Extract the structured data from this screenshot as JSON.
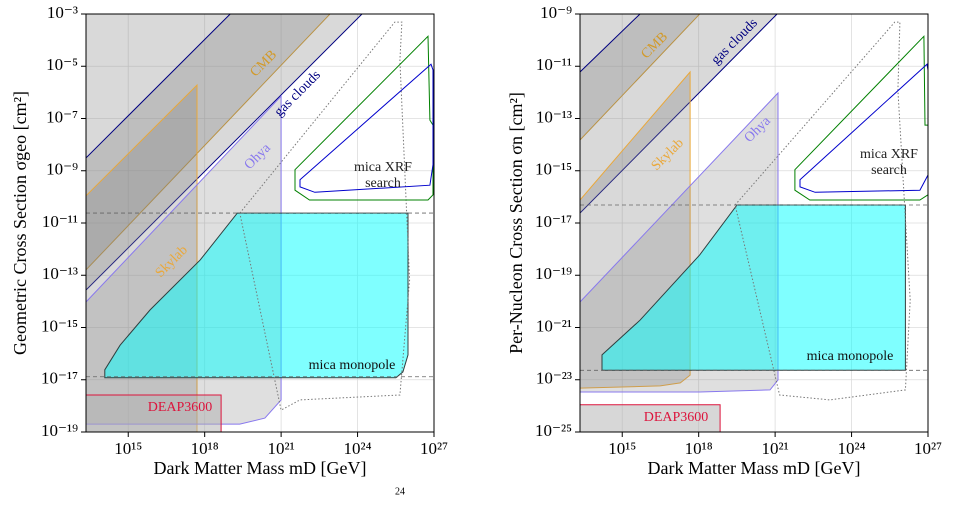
{
  "page_fragment": "24",
  "chart_data": [
    {
      "type": "area",
      "xlabel": "Dark Matter Mass mD [GeV]",
      "ylabel": "Geometric Cross Section σgeo [cm²]",
      "xscale": "log",
      "yscale": "log",
      "grid": true,
      "xlim": [
        22000000000000.0,
        1e+27
      ],
      "ylim": [
        1e-19,
        0.001
      ],
      "xticks": [
        {
          "value": 1000000000000000.0,
          "label": "10¹⁵"
        },
        {
          "value": 1e+18,
          "label": "10¹⁸"
        },
        {
          "value": 1e+21,
          "label": "10²¹"
        },
        {
          "value": 1e+24,
          "label": "10²⁴"
        },
        {
          "value": 1e+27,
          "label": "10²⁷"
        }
      ],
      "yticks": [
        {
          "value": 1e-19,
          "label": "10⁻¹⁹"
        },
        {
          "value": 1e-17,
          "label": "10⁻¹⁷"
        },
        {
          "value": 1e-15,
          "label": "10⁻¹⁵"
        },
        {
          "value": 1e-13,
          "label": "10⁻¹³"
        },
        {
          "value": 1e-11,
          "label": "10⁻¹¹"
        },
        {
          "value": 1e-09,
          "label": "10⁻⁹"
        },
        {
          "value": 1e-07,
          "label": "10⁻⁷"
        },
        {
          "value": 1e-05,
          "label": "10⁻⁵"
        },
        {
          "value": 0.001,
          "label": "10⁻³"
        }
      ],
      "hlines": [
        2.4e-11,
        1.3e-17
      ],
      "series": [
        {
          "name": "CMB",
          "color": "#d29a2a",
          "fill": "#808080",
          "alpha": 0.3,
          "x": [
            22000000000000.0,
            8.3e+22,
            22000000000000.0
          ],
          "y": [
            0.001,
            0.001,
            1.6e-13
          ]
        },
        {
          "name": "gas clouds",
          "color": "#000080",
          "fill": "#808080",
          "alpha": 0.3,
          "x": [
            22000000000000.0,
            1e+19,
            1.5e+24,
            22000000000000.0
          ],
          "y": [
            3.1e-09,
            0.001,
            0.001,
            2.7e-14
          ]
        },
        {
          "name": "Skylab",
          "color": "#eaa83a",
          "fill": "#808080",
          "alpha": 0.3,
          "x": [
            22000000000000.0,
            5e+17,
            5e+17,
            22000000000000.0
          ],
          "y": [
            1.1e-10,
            1.9e-06,
            1e-19,
            1e-19
          ]
        },
        {
          "name": "Ohya",
          "color": "#8878ee",
          "fill": "#808080",
          "alpha": 0.25,
          "x": [
            22000000000000.0,
            1e+21,
            1e+21,
            2.3e+20,
            2.4e+19,
            22000000000000.0
          ],
          "y": [
            9.5e-15,
            7.2e-07,
            1.7e-18,
            3.4e-19,
            2e-19,
            2e-19
          ]
        },
        {
          "name": "DEAP3600",
          "color": "#dc143c",
          "fill": "#b0b0b0",
          "alpha": 0.5,
          "x": [
            22000000000000.0,
            4.4e+18,
            4.4e+18,
            22000000000000.0
          ],
          "y": [
            2.6e-18,
            2.6e-18,
            1e-19,
            1e-19
          ]
        },
        {
          "name": "mica monopole",
          "color": "#2f3f3f",
          "fill": "#00ffff",
          "alpha": 0.5,
          "x": [
            120000000000000.0,
            480000000000000.0,
            7200000000000000.0,
            6.6e+17,
            1.9e+19,
            9.5e+25,
            9.5e+25,
            6e+25,
            3.2e+25,
            120000000000000.0
          ],
          "y": [
            2.4e-17,
            2.1e-16,
            4.7e-15,
            3.8e-13,
            2.4e-11,
            2.4e-11,
            8.9e-17,
            2e-17,
            1.2e-17,
            1.2e-17
          ]
        },
        {
          "color": "#777777",
          "dash": "dotted",
          "x": [
            2.4e+19,
            2.9e+25,
            5.5e+25,
            4.6e+25,
            1.1e+26,
            4.6e+25,
            5.5e+21,
            1e+21
          ],
          "y": [
            2.4e-11,
            0.00049,
            0.00049,
            1.7e-05,
            6.6e-14,
            2.6e-18,
            1.7e-18,
            6.9e-19
          ]
        },
        {
          "name": "mica XRF search",
          "color": "#008000",
          "x": [
            3.5e+21,
            5.8e+26,
            6.9e+26,
            9.1e+26,
            9.1e+26,
            5.8e+26,
            1.3e+22,
            3.5e+21
          ],
          "y": [
            1.1e-09,
            0.00014,
            8.7e-08,
            5.6e-08,
            1.2e-10,
            7.6e-11,
            7.6e-11,
            1.8e-10
          ]
        },
        {
          "color": "#0000cc",
          "x": [
            5.5e+21,
            7.6e+26,
            9.1e+26,
            9.1e+26,
            6.9e+26,
            2.1e+22,
            5.5e+21
          ],
          "y": [
            4.5e-10,
            1.2e-05,
            7.2e-06,
            1.7e-09,
            2.8e-10,
            1.5e-10,
            2.4e-10
          ]
        }
      ]
    },
    {
      "type": "area",
      "xlabel": "Dark Matter Mass mD [GeV]",
      "ylabel": "Per-Nucleon Cross Section σn [cm²]",
      "xscale": "log",
      "yscale": "log",
      "grid": true,
      "xlim": [
        22000000000000.0,
        1e+27
      ],
      "ylim": [
        1e-25,
        1e-09
      ],
      "xticks": [
        {
          "value": 1000000000000000.0,
          "label": "10¹⁵"
        },
        {
          "value": 1e+18,
          "label": "10¹⁸"
        },
        {
          "value": 1e+21,
          "label": "10²¹"
        },
        {
          "value": 1e+24,
          "label": "10²⁴"
        },
        {
          "value": 1e+27,
          "label": "10²⁷"
        }
      ],
      "yticks": [
        {
          "value": 1e-25,
          "label": "10⁻²⁵"
        },
        {
          "value": 1e-23,
          "label": "10⁻²³"
        },
        {
          "value": 1e-21,
          "label": "10⁻²¹"
        },
        {
          "value": 1e-19,
          "label": "10⁻¹⁹"
        },
        {
          "value": 1e-17,
          "label": "10⁻¹⁷"
        },
        {
          "value": 1e-15,
          "label": "10⁻¹⁵"
        },
        {
          "value": 1e-13,
          "label": "10⁻¹³"
        },
        {
          "value": 1e-11,
          "label": "10⁻¹¹"
        },
        {
          "value": 1e-09,
          "label": "10⁻⁹"
        }
      ],
      "hlines": [
        4.9e-17,
        2.3e-23
      ],
      "series": [
        {
          "name": "CMB",
          "color": "#d29a2a",
          "fill": "#808080",
          "alpha": 0.3,
          "x": [
            22000000000000.0,
            1.1e+18,
            22000000000000.0
          ],
          "y": [
            1e-09,
            1e-09,
            1.5e-14
          ]
        },
        {
          "name": "gas clouds",
          "color": "#000080",
          "fill": "#808080",
          "alpha": 0.3,
          "x": [
            22000000000000.0,
            5000000000000000.0,
            1.2e+21,
            22000000000000.0
          ],
          "y": [
            6e-12,
            1e-09,
            1e-09,
            2.4e-17
          ]
        },
        {
          "name": "Skylab",
          "color": "#eaa83a",
          "fill": "#808080",
          "alpha": 0.3,
          "x": [
            22000000000000.0,
            4.6e+17,
            4.6e+17,
            1.9e+17,
            3.1e+16,
            22000000000000.0
          ],
          "y": [
            7.6e-17,
            6e-12,
            1.5e-23,
            7.6e-24,
            5.8e-24,
            4.8e-24
          ]
        },
        {
          "name": "Ohya",
          "color": "#8878ee",
          "fill": "#808080",
          "alpha": 0.25,
          "x": [
            22000000000000.0,
            1.3e+21,
            1.3e+21,
            6.3e+20,
            1.1e+18,
            22000000000000.0
          ],
          "y": [
            9.5e-21,
            9.5e-13,
            9.8e-24,
            4.1e-24,
            3.4e-24,
            3.4e-24
          ]
        },
        {
          "name": "DEAP3600",
          "color": "#dc143c",
          "fill": "#b0b0b0",
          "alpha": 0.5,
          "x": [
            22000000000000.0,
            6.9e+18,
            6.9e+18,
            22000000000000.0
          ],
          "y": [
            1.1e-24,
            1.1e-24,
            1e-25,
            1e-25
          ]
        },
        {
          "name": "mica monopole",
          "color": "#2f3f3f",
          "fill": "#00ffff",
          "alpha": 0.5,
          "x": [
            160000000000000.0,
            160000000000000.0,
            5000000000000000.0,
            1.1e+18,
            3.2e+19,
            1.3e+26,
            1.3e+26
          ],
          "y": [
            2.3e-23,
            8.9e-23,
            1.9e-21,
            6e-19,
            4.9e-17,
            4.9e-17,
            2.3e-23
          ]
        },
        {
          "color": "#777777",
          "dash": "dotted",
          "x": [
            2.7e+19,
            5e+25,
            7.9e+25,
            6.6e+25,
            2e+26,
            1.3e+26,
            1.4e+23,
            1.5e+21
          ],
          "y": [
            4.9e-17,
            4.9e-10,
            4.9e-10,
            1.2e-12,
            1.1e-20,
            4.1e-24,
            1.7e-24,
            2.6e-24
          ]
        },
        {
          "name": "mica XRF search",
          "color": "#008000",
          "x": [
            6e+21,
            6.9e+26,
            7.6e+26,
            1e+27,
            1e+27,
            4.8e+26,
            2.3e+22,
            6e+21
          ],
          "y": [
            1.1e-15,
            1.4e-10,
            5.6e-14,
            5.6e-14,
            1.2e-16,
            7.6e-17,
            7.6e-17,
            1.8e-16
          ]
        },
        {
          "color": "#0000cc",
          "x": [
            9.5e+21,
            9.1e+26,
            1e+27,
            1e+27,
            4.8e+26,
            3.7e+22,
            9.5e+21
          ],
          "y": [
            4.5e-16,
            1.2e-11,
            7.2e-12,
            6.9e-16,
            1.8e-16,
            1.5e-16,
            2.4e-16
          ]
        }
      ]
    }
  ]
}
